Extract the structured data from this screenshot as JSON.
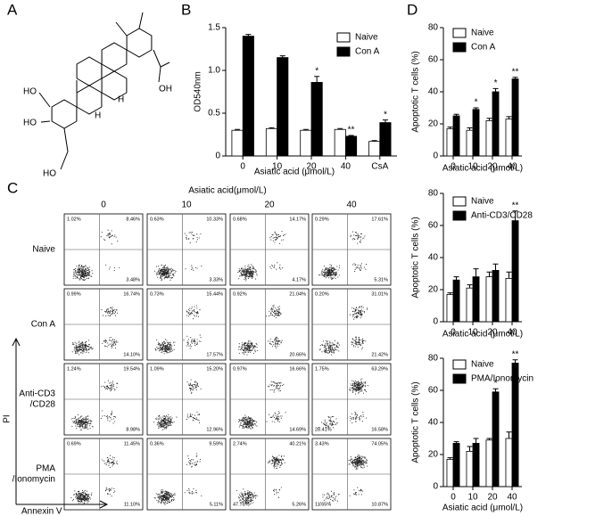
{
  "panel_labels": [
    "A",
    "B",
    "C",
    "D"
  ],
  "structure": {
    "labels": [
      "HO",
      "HO",
      "HO",
      "OH",
      "H",
      "H"
    ]
  },
  "chart_data": [
    {
      "type": "bar",
      "ylabel": "OD540nm",
      "xlabel": "Asiatic acid (μmol/L)",
      "categories": [
        "0",
        "10",
        "20",
        "40",
        "CsA"
      ],
      "ylim": [
        0,
        1.5
      ],
      "yticks": [
        0,
        0.5,
        {
          "value": 1,
          "label": "1.0"
        },
        1.5
      ],
      "series": [
        {
          "name": "Naive",
          "color": "#ffffff",
          "values": [
            0.3,
            0.32,
            0.3,
            0.31,
            0.17
          ],
          "errors": [
            0.01,
            0.01,
            0.01,
            0.01,
            0.01
          ],
          "significance": [
            null,
            null,
            null,
            null,
            null
          ]
        },
        {
          "name": "Con A",
          "color": "#000000",
          "values": [
            1.4,
            1.15,
            0.86,
            0.23,
            0.39
          ],
          "errors": [
            0.02,
            0.02,
            0.07,
            0.01,
            0.03
          ],
          "significance": [
            null,
            null,
            "*",
            "**",
            "*"
          ]
        }
      ]
    },
    {
      "type": "bar",
      "ylabel": "Apoptotic T cells (%)",
      "xlabel": "Asiatic acid (μmol/L)",
      "categories": [
        "0",
        "10",
        "20",
        "40"
      ],
      "ylim": [
        0,
        80
      ],
      "yticks": [
        0,
        20,
        40,
        60,
        80
      ],
      "series": [
        {
          "name": "Naive",
          "color": "#ffffff",
          "values": [
            17,
            16,
            22,
            23
          ],
          "errors": [
            1,
            1.5,
            1.5,
            1.5
          ],
          "significance": [
            null,
            null,
            null,
            null
          ]
        },
        {
          "name": "Con A",
          "color": "#000000",
          "values": [
            25,
            29,
            40,
            48
          ],
          "errors": [
            1,
            1,
            2,
            1
          ],
          "significance": [
            null,
            "*",
            "*",
            "**"
          ]
        }
      ]
    },
    {
      "type": "bar",
      "ylabel": "Apoptotic T cells (%)",
      "xlabel": "Asiatic acid (μmol/L)",
      "categories": [
        "0",
        "10",
        "20",
        "40"
      ],
      "ylim": [
        0,
        80
      ],
      "yticks": [
        0,
        20,
        40,
        60,
        80
      ],
      "series": [
        {
          "name": "Naive",
          "color": "#ffffff",
          "values": [
            17,
            21,
            28,
            27
          ],
          "errors": [
            1,
            2,
            3,
            4
          ],
          "significance": [
            null,
            null,
            null,
            null
          ]
        },
        {
          "name": "Anti-CD3/CD28",
          "color": "#000000",
          "values": [
            26,
            28,
            32,
            63
          ],
          "errors": [
            2,
            5,
            4,
            6
          ],
          "significance": [
            null,
            null,
            null,
            "**"
          ]
        }
      ]
    },
    {
      "type": "bar",
      "ylabel": "Apoptotic T cells (%)",
      "xlabel": "Asiatic acid (μmol/L)",
      "categories": [
        "0",
        "10",
        "20",
        "40"
      ],
      "ylim": [
        0,
        80
      ],
      "yticks": [
        0,
        20,
        40,
        60,
        80
      ],
      "series": [
        {
          "name": "Naive",
          "color": "#ffffff",
          "values": [
            17,
            22,
            29,
            30
          ],
          "errors": [
            1,
            3,
            1,
            4
          ],
          "significance": [
            null,
            null,
            null,
            null
          ]
        },
        {
          "name": "PMA/Ionomycin",
          "color": "#000000",
          "values": [
            27,
            27,
            59,
            77
          ],
          "errors": [
            1,
            3,
            2,
            2
          ],
          "significance": [
            null,
            null,
            "*",
            "**"
          ]
        }
      ]
    }
  ],
  "flow": {
    "title": "Asiatic acid(μmol/L)",
    "columns": [
      "0",
      "10",
      "20",
      "40"
    ],
    "y_label": "PI",
    "x_label": "Annexin V",
    "rows": [
      {
        "label": [
          "Naive"
        ],
        "cells": [
          {
            "ul": "1.02%",
            "ur": "8.46%",
            "lr": "3.48%"
          },
          {
            "ul": "0.63%",
            "ur": "10.33%",
            "lr": "3.33%"
          },
          {
            "ul": "0.68%",
            "ur": "14.17%",
            "lr": "4.17%"
          },
          {
            "ul": "0.29%",
            "ur": "17.61%",
            "lr": "5.31%"
          }
        ]
      },
      {
        "label": [
          "Con A"
        ],
        "cells": [
          {
            "ul": "0.99%",
            "ur": "16.74%",
            "lr": "14.10%"
          },
          {
            "ul": "0.73%",
            "ur": "15.44%",
            "lr": "17.57%"
          },
          {
            "ul": "0.92%",
            "ur": "21.04%",
            "lr": "20.66%"
          },
          {
            "ul": "0.20%",
            "ur": "31.01%",
            "lr": "21.42%"
          }
        ]
      },
      {
        "label": [
          "Anti-CD3",
          "/CD28"
        ],
        "cells": [
          {
            "ul": "1.24%",
            "ur": "19.54%",
            "lr": "8.98%"
          },
          {
            "ul": "1.09%",
            "ur": "15.20%",
            "lr": "12.96%"
          },
          {
            "ul": "0.97%",
            "ur": "16.66%",
            "lr": "14.69%"
          },
          {
            "ul": "1.75%",
            "ur": "63.29%",
            "lr": "16.58%",
            "ll": "28.41%"
          }
        ]
      },
      {
        "label": [
          "PMA",
          "/Ionomycin"
        ],
        "cells": [
          {
            "ul": "0.69%",
            "ur": "11.45%",
            "lr": "11.10%"
          },
          {
            "ul": "0.36%",
            "ur": "9.59%",
            "lr": "5.11%"
          },
          {
            "ul": "2.74%",
            "ur": "40.21%",
            "lr": "5.26%",
            "ll": "47.78%"
          },
          {
            "ul": "3.43%",
            "ur": "74.05%",
            "lr": "10.87%",
            "ll": "11.65%"
          }
        ]
      }
    ]
  }
}
